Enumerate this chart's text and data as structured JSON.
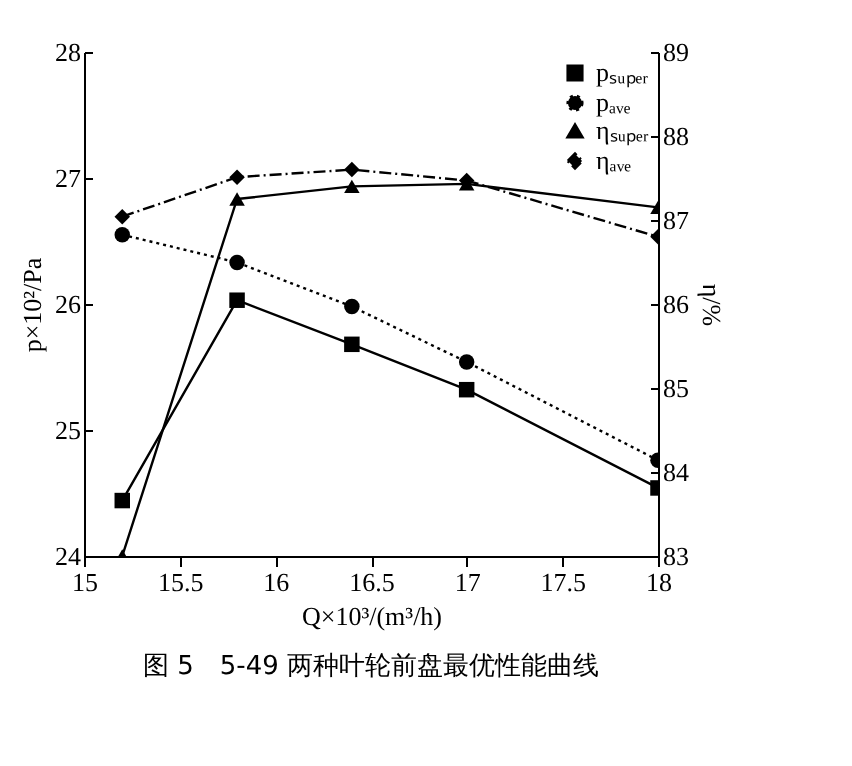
{
  "chart_data": {
    "type": "line",
    "title": "图 5　5-49 两种叶轮前盘最优性能曲线",
    "xlabel": "Q×10³/(m³/h)",
    "ylabel": "p×10²/Pa",
    "y2label": "η/%",
    "x": [
      15.2,
      15.8,
      16.4,
      17,
      18
    ],
    "xlim": [
      15,
      18
    ],
    "xticks": [
      15,
      15.5,
      16,
      16.5,
      17,
      17.5,
      18
    ],
    "ylim": [
      24,
      28
    ],
    "yticks": [
      24,
      25,
      26,
      27,
      28
    ],
    "y2lim": [
      83,
      89
    ],
    "y2ticks": [
      83,
      84,
      85,
      86,
      87,
      88,
      89
    ],
    "grid": false,
    "legend": "top right",
    "series": [
      {
        "name": "pₛᵤₚₑᵣ",
        "color": "#000000",
        "marker": "square",
        "line_style": "solid",
        "values": [
          24.44,
          26.03,
          25.68,
          25.32,
          24.54
        ]
      },
      {
        "name": "pₐᵥₑ",
        "color": "#000000",
        "marker": "circle",
        "line_style": "dotted",
        "values": [
          26.55,
          26.33,
          25.98,
          25.54,
          24.76
        ]
      },
      {
        "name": "ηₛᵤₚₑᵣ",
        "color": "#000000",
        "marker": "triangle",
        "line_style": "solid",
        "axis": "y2",
        "values": [
          83.0,
          87.25,
          87.4,
          87.43,
          87.15
        ]
      },
      {
        "name": "ηₐᵥₑ",
        "color": "#000000",
        "marker": "diamond",
        "line_style": "dashed",
        "axis": "y2",
        "values": [
          87.04,
          87.51,
          87.6,
          87.47,
          86.8
        ]
      }
    ]
  }
}
